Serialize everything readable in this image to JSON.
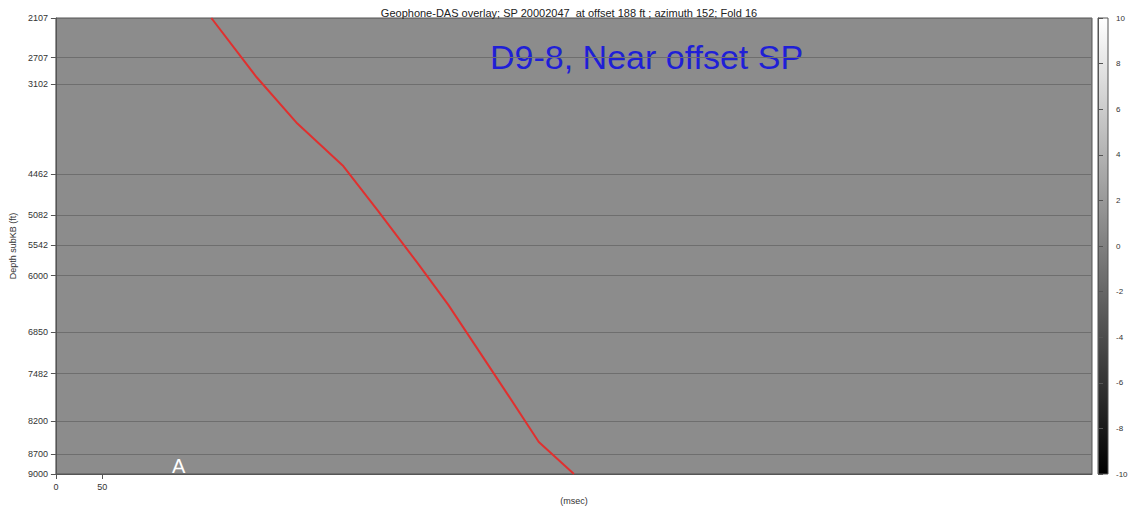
{
  "chart_data": {
    "type": "line",
    "title": "Geophone-DAS overlay; SP 20002047  at offset 188 ft ; azimuth 152; Fold 16",
    "annotations": [
      "D9-8, Near offset SP",
      "A"
    ],
    "x_label": "(msec)",
    "y_label": "Depth subKB (ft)",
    "x": [
      168,
      217,
      261,
      310,
      348,
      391,
      424,
      457,
      489,
      522,
      560
    ],
    "values": [
      2107,
      3003,
      3703,
      4336,
      5020,
      5813,
      6440,
      7135,
      7811,
      8516,
      9000
    ],
    "color": "#e0302f",
    "xlim": [
      0,
      1120
    ],
    "xticks": [
      0,
      50
    ],
    "ylim": [
      2107,
      9000
    ],
    "yticks": [
      2107,
      2707,
      3102,
      4462,
      5082,
      5542,
      6000,
      6850,
      7482,
      8200,
      8700,
      9000
    ],
    "grid": true,
    "colorbar": {
      "range": [
        -10,
        10
      ],
      "ticks": [
        10,
        8,
        6,
        4,
        2,
        0,
        -2,
        -4,
        -6,
        -8,
        -10
      ]
    }
  }
}
